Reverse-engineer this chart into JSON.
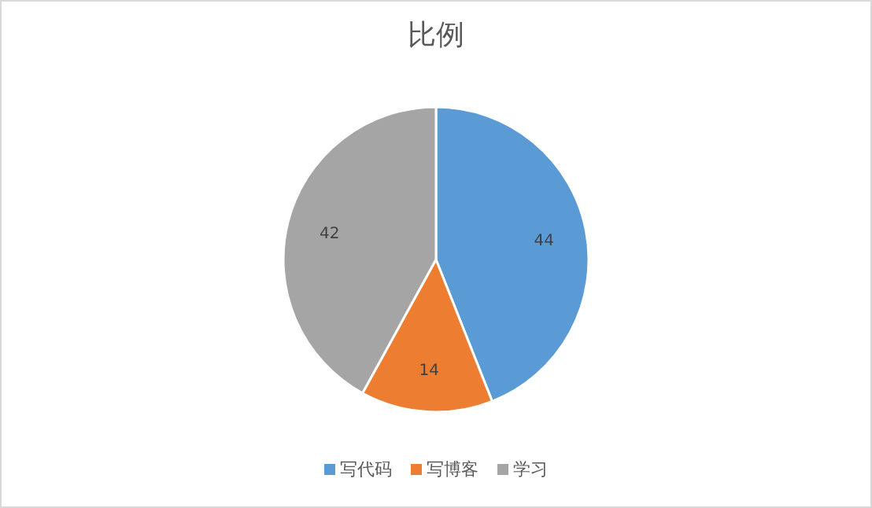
{
  "chart_data": {
    "type": "pie",
    "title": "比例",
    "categories": [
      "写代码",
      "写博客",
      "学习"
    ],
    "values": [
      44,
      14,
      42
    ],
    "colors": [
      "#5b9bd5",
      "#ed7d31",
      "#a5a5a5"
    ],
    "data_labels": true,
    "legend": "bottom"
  }
}
